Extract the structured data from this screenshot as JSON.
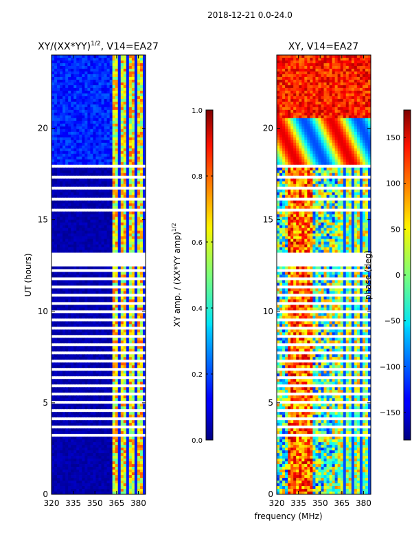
{
  "figure": {
    "suptitle": "2018-12-21 0.0-24.0",
    "xlabel": "frequency (MHz)"
  },
  "chart_data": [
    {
      "type": "heatmap",
      "title": "XY/(XX*YY)",
      "title_sup": "1/2",
      "title_suffix": ", V14=EA27",
      "xlabel": "",
      "ylabel": "UT (hours)",
      "xlim": [
        320,
        385
      ],
      "ylim": [
        0,
        24
      ],
      "xticks": [
        320,
        335,
        350,
        365,
        380
      ],
      "yticks": [
        0,
        5,
        10,
        15,
        20
      ],
      "colorbar": {
        "label": "XY amp. / (XX*YY amp)",
        "label_sup": "1/2",
        "range": [
          0.0,
          1.0
        ],
        "ticks": [
          "0.0",
          "0.2",
          "0.4",
          "0.6",
          "0.8",
          "1.0"
        ],
        "colormap": "jet"
      }
    },
    {
      "type": "heatmap",
      "title": "XY, V14=EA27",
      "xlabel": "",
      "ylabel": "",
      "xlim": [
        320,
        385
      ],
      "ylim": [
        0,
        24
      ],
      "xticks": [
        320,
        335,
        350,
        365,
        380
      ],
      "yticks": [
        0,
        5,
        10,
        15,
        20
      ],
      "colorbar": {
        "label": "phase (deg)",
        "range": [
          -180,
          180
        ],
        "ticks": [
          "−150",
          "−100",
          "−50",
          "0",
          "50",
          "100",
          "150"
        ],
        "tick_values": [
          -150,
          -100,
          -50,
          0,
          50,
          100,
          150
        ],
        "colormap": "jet"
      }
    }
  ]
}
